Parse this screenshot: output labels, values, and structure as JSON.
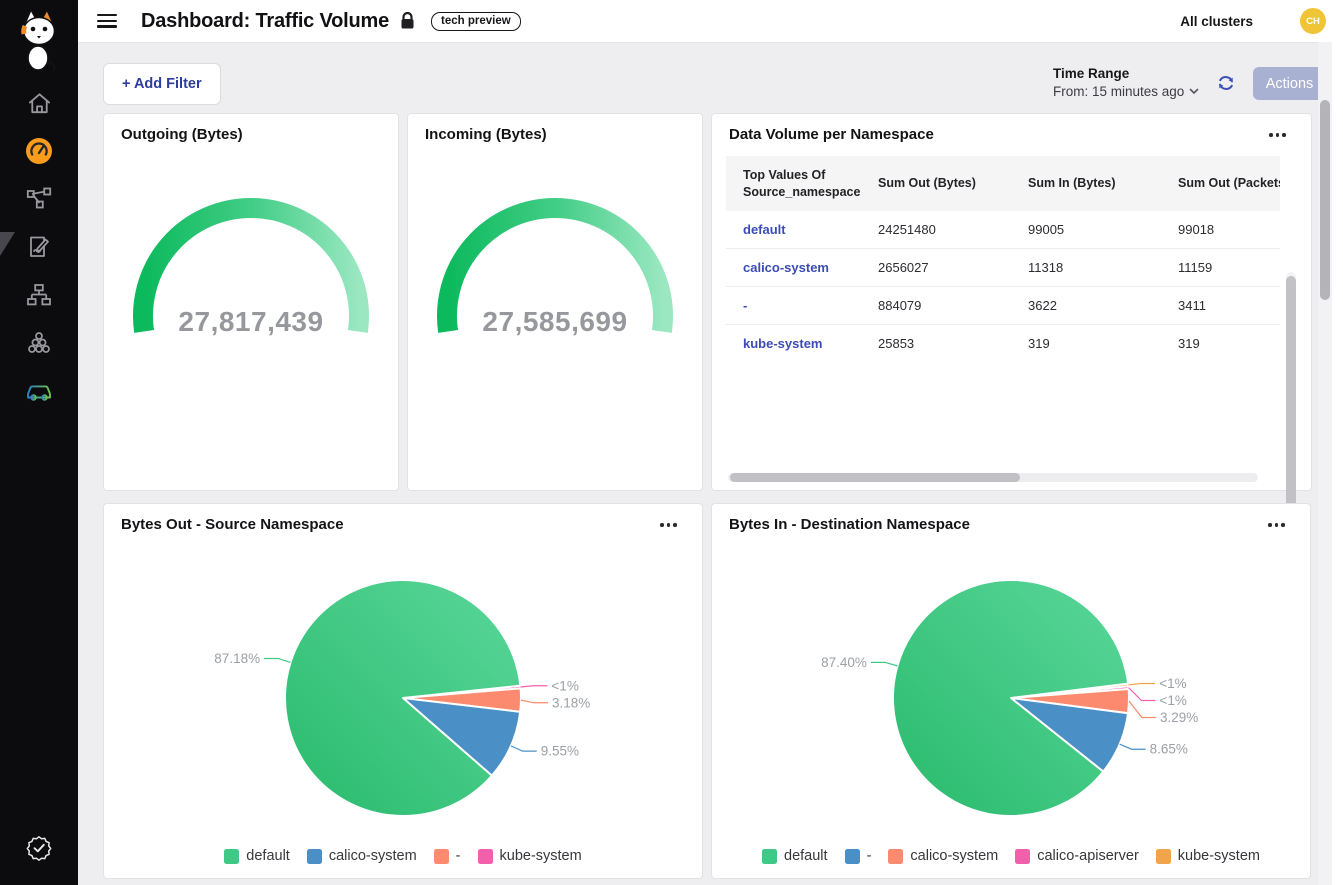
{
  "header": {
    "title": "Dashboard: Traffic Volume",
    "badge": "tech preview",
    "cluster_selector": "All clusters",
    "avatar_initials": "CH"
  },
  "sidebar": {
    "logo": "calico-cat-logo",
    "nav_icons": [
      "home",
      "dashboard",
      "service-graph",
      "policies",
      "network-topology",
      "clusters",
      "workloads-car",
      "verified-badge"
    ],
    "active_icon": "dashboard",
    "active_color": "#f99c1b"
  },
  "filter_bar": {
    "add_filter_label": "+ Add Filter",
    "time_range_title": "Time Range",
    "time_range_value": "From: 15 minutes ago",
    "actions_label": "Actions"
  },
  "cards": {
    "data_volume": {
      "title": "Data Volume per Namespace",
      "menu_icon": "ellipsis"
    },
    "bytes_out": {
      "menu_icon": "ellipsis"
    },
    "bytes_in": {
      "menu_icon": "ellipsis"
    }
  },
  "table": {
    "columns": [
      "Top Values Of Source_namespace",
      "Sum Out (Bytes)",
      "Sum In (Bytes)",
      "Sum Out (Packets)"
    ],
    "rows": [
      {
        "namespace": "default",
        "sum_out_bytes": "24251480",
        "sum_in_bytes": "99005",
        "sum_out_packets": "99018"
      },
      {
        "namespace": "calico-system",
        "sum_out_bytes": "2656027",
        "sum_in_bytes": "11318",
        "sum_out_packets": "11159"
      },
      {
        "namespace": "-",
        "sum_out_bytes": "884079",
        "sum_in_bytes": "3622",
        "sum_out_packets": "3411"
      },
      {
        "namespace": "kube-system",
        "sum_out_bytes": "25853",
        "sum_in_bytes": "319",
        "sum_out_packets": "319"
      }
    ]
  },
  "chart_data": [
    {
      "id": "gauge_outgoing",
      "type": "gauge",
      "title": "Outgoing (Bytes)",
      "value": 27817439,
      "display": "27,817,439",
      "arc_colors": [
        "#0cb95d",
        "#41cd85",
        "#9ae7c1"
      ],
      "value_color": "#97989d"
    },
    {
      "id": "gauge_incoming",
      "type": "gauge",
      "title": "Incoming (Bytes)",
      "value": 27585699,
      "display": "27,585,699",
      "arc_colors": [
        "#0cb95d",
        "#41cd85",
        "#9ae7c1"
      ],
      "value_color": "#97989d"
    },
    {
      "id": "pie_bytes_out",
      "type": "pie",
      "title": "Bytes Out - Source Namespace",
      "start_angle_deg": 84,
      "clockwise": true,
      "slices": [
        {
          "name": "kube-system",
          "label": "<1%",
          "pct": 0.09,
          "value_bytes": 25853,
          "color": "#f45fac"
        },
        {
          "name": "-",
          "label": "3.18%",
          "pct": 3.18,
          "value_bytes": 884079,
          "color": "#fb8a6e"
        },
        {
          "name": "calico-system",
          "label": "9.55%",
          "pct": 9.55,
          "value_bytes": 2656027,
          "color": "#4a8fc6"
        },
        {
          "name": "default",
          "label": "87.18%",
          "pct": 87.18,
          "value_bytes": 24251480,
          "color": "#3fc987",
          "gradient": [
            "#29ba6c",
            "#5ad79a"
          ]
        }
      ],
      "legend": [
        "default",
        "calico-system",
        "-",
        "kube-system"
      ],
      "label_color": "#9ba0a6"
    },
    {
      "id": "pie_bytes_in",
      "type": "pie",
      "title": "Bytes In - Destination Namespace",
      "start_angle_deg": 83,
      "clockwise": true,
      "slices": [
        {
          "name": "kube-system",
          "label": "<1%",
          "pct": 0.33,
          "color": "#f2a44c"
        },
        {
          "name": "calico-apiserver",
          "label": "<1%",
          "pct": 0.33,
          "color": "#f45fac"
        },
        {
          "name": "calico-system",
          "label": "3.29%",
          "pct": 3.29,
          "color": "#fb8a6e"
        },
        {
          "name": "-",
          "label": "8.65%",
          "pct": 8.65,
          "color": "#4a8fc6"
        },
        {
          "name": "default",
          "label": "87.40%",
          "pct": 87.4,
          "color": "#3fc987",
          "gradient": [
            "#29ba6c",
            "#5ad79a"
          ]
        }
      ],
      "legend": [
        "default",
        "-",
        "calico-system",
        "calico-apiserver",
        "kube-system"
      ],
      "label_color": "#9ba0a6"
    }
  ]
}
